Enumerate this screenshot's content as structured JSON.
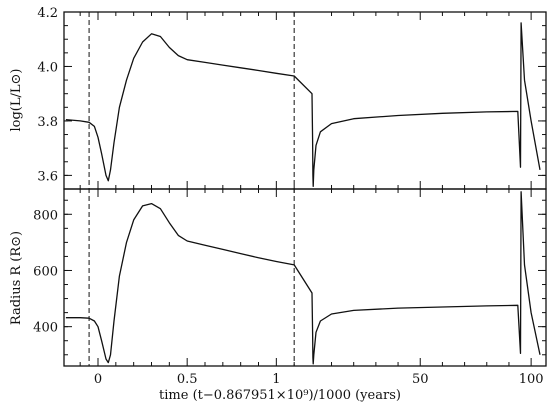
{
  "chart_data": [
    {
      "type": "line",
      "ylabel": "log(L/L⊙)",
      "ylim": [
        3.55,
        4.2
      ],
      "yticks": [
        "3.6",
        "3.8",
        "4.0",
        "4.2"
      ],
      "series": [
        {
          "points": [
            [
              -0.18,
              3.805
            ],
            [
              -0.1,
              3.8
            ],
            [
              -0.05,
              3.795
            ],
            [
              -0.02,
              3.78
            ],
            [
              0.0,
              3.74
            ],
            [
              0.02,
              3.68
            ],
            [
              0.045,
              3.6
            ],
            [
              0.058,
              3.58
            ],
            [
              0.07,
              3.62
            ],
            [
              0.09,
              3.72
            ],
            [
              0.12,
              3.85
            ],
            [
              0.16,
              3.95
            ],
            [
              0.2,
              4.03
            ],
            [
              0.25,
              4.09
            ],
            [
              0.3,
              4.12
            ],
            [
              0.35,
              4.11
            ],
            [
              0.4,
              4.07
            ],
            [
              0.45,
              4.04
            ],
            [
              0.5,
              4.025
            ],
            [
              0.6,
              4.015
            ],
            [
              0.7,
              4.005
            ],
            [
              0.8,
              3.995
            ],
            [
              0.9,
              3.985
            ],
            [
              1.0,
              3.975
            ],
            [
              1.1,
              3.965
            ],
            [
              1.2,
              3.9
            ],
            [
              1.45,
              3.73
            ],
            [
              1.6,
              3.6
            ],
            [
              1.75,
              3.56
            ],
            [
              2.0,
              3.62
            ],
            [
              3,
              3.71
            ],
            [
              5,
              3.76
            ],
            [
              10,
              3.79
            ],
            [
              20,
              3.808
            ],
            [
              40,
              3.82
            ],
            [
              60,
              3.828
            ],
            [
              80,
              3.833
            ],
            [
              94,
              3.835
            ],
            [
              95.2,
              3.63
            ],
            [
              95.5,
              4.16
            ],
            [
              97,
              3.95
            ],
            [
              100,
              3.8
            ],
            [
              104,
              3.62
            ]
          ]
        }
      ]
    },
    {
      "type": "line",
      "ylabel": "Radius   R   (R⊙)",
      "ylim": [
        260,
        890
      ],
      "yticks": [
        "400",
        "600",
        "800"
      ],
      "xlabel": "time   (t−0.867951×10⁹)/1000   (years)",
      "xticks": [
        "0",
        "0.5",
        "1",
        "50",
        "100"
      ],
      "series": [
        {
          "points": [
            [
              -0.18,
              432
            ],
            [
              -0.1,
              432
            ],
            [
              -0.05,
              430
            ],
            [
              -0.02,
              420
            ],
            [
              0.0,
              400
            ],
            [
              0.02,
              350
            ],
            [
              0.045,
              285
            ],
            [
              0.058,
              272
            ],
            [
              0.07,
              300
            ],
            [
              0.09,
              420
            ],
            [
              0.12,
              580
            ],
            [
              0.16,
              700
            ],
            [
              0.2,
              780
            ],
            [
              0.25,
              830
            ],
            [
              0.3,
              838
            ],
            [
              0.35,
              820
            ],
            [
              0.4,
              770
            ],
            [
              0.45,
              725
            ],
            [
              0.5,
              705
            ],
            [
              0.6,
              690
            ],
            [
              0.7,
              675
            ],
            [
              0.8,
              660
            ],
            [
              0.9,
              645
            ],
            [
              1.0,
              632
            ],
            [
              1.1,
              620
            ],
            [
              1.2,
              520
            ],
            [
              1.45,
              380
            ],
            [
              1.6,
              290
            ],
            [
              1.75,
              268
            ],
            [
              2.0,
              300
            ],
            [
              3,
              380
            ],
            [
              5,
              420
            ],
            [
              10,
              445
            ],
            [
              20,
              458
            ],
            [
              40,
              466
            ],
            [
              60,
              470
            ],
            [
              80,
              474
            ],
            [
              94,
              476
            ],
            [
              95.2,
              305
            ],
            [
              95.5,
              880
            ],
            [
              97,
              620
            ],
            [
              100,
              450
            ],
            [
              104,
              300
            ]
          ]
        }
      ]
    }
  ],
  "vertical_markers": [
    -0.05,
    1.1
  ]
}
